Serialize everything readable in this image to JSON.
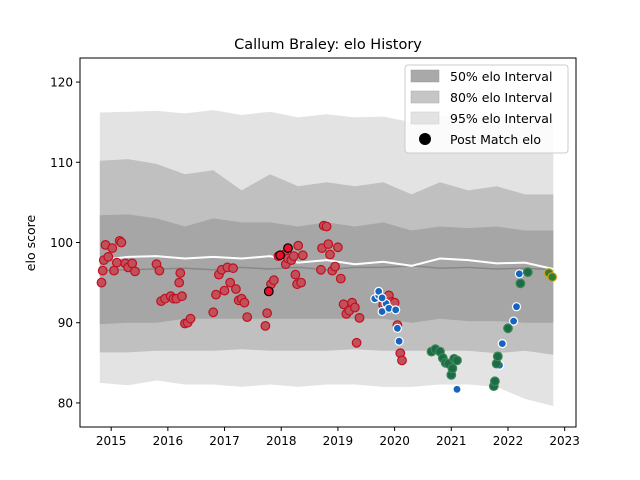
{
  "chart_data": {
    "type": "scatter",
    "title": "Callum Braley: elo History",
    "xlabel": "",
    "ylabel": "elo score",
    "xlim": [
      2014.45,
      2023.2
    ],
    "ylim": [
      77,
      123
    ],
    "x_ticks": [
      "2015",
      "2016",
      "2017",
      "2018",
      "2019",
      "2020",
      "2021",
      "2022",
      "2023"
    ],
    "y_ticks": [
      "80",
      "90",
      "100",
      "110",
      "120"
    ],
    "grid": false,
    "legend_position": "top-right",
    "legend": [
      "50% elo Interval",
      "80% elo Interval",
      "95% elo Interval",
      "Post Match elo"
    ],
    "colors": {
      "band50": "#9e9e9e",
      "band80": "#c0c0c0",
      "band95": "#e3e3e3",
      "median_line": "#888888",
      "mean_line": "#ffffff",
      "point_red_fill": "#c0505a",
      "point_red_edge": "#c01020",
      "point_green_fill": "#1e6b4b",
      "point_green_edge": "#3a8a50",
      "point_blue_fill": "#1565c0",
      "point_blue_edge": "#ffffff",
      "point_gold_fill": "#2e7d32",
      "point_gold_edge": "#d4a017"
    },
    "bands": {
      "x": [
        2014.8,
        2015.3,
        2015.8,
        2016.3,
        2016.8,
        2017.3,
        2017.8,
        2018.3,
        2018.8,
        2019.3,
        2019.8,
        2020.3,
        2020.8,
        2021.3,
        2021.8,
        2022.3,
        2022.8
      ],
      "p95_high": [
        116.2,
        116.3,
        116.4,
        116.1,
        116.5,
        115.9,
        116.3,
        115.6,
        116.0,
        115.6,
        115.7,
        115.0,
        115.8,
        115.6,
        115.8,
        115.4,
        115.3
      ],
      "p80_high": [
        110.2,
        110.4,
        109.8,
        108.5,
        109.0,
        106.5,
        108.5,
        107.0,
        107.5,
        107.0,
        107.5,
        106.0,
        107.5,
        106.5,
        107.0,
        106.0,
        106.0
      ],
      "p50_high": [
        103.4,
        103.5,
        103.0,
        102.0,
        103.0,
        102.5,
        102.5,
        102.0,
        102.5,
        102.0,
        102.5,
        101.5,
        102.0,
        101.8,
        102.0,
        101.5,
        101.5
      ],
      "p50_low": [
        89.8,
        90.0,
        90.0,
        90.5,
        90.5,
        90.5,
        90.5,
        90.5,
        90.5,
        90.5,
        90.5,
        90.0,
        90.5,
        90.2,
        90.2,
        90.0,
        90.0
      ],
      "p80_low": [
        86.3,
        86.3,
        86.5,
        86.5,
        86.5,
        86.7,
        86.5,
        86.5,
        86.5,
        86.7,
        86.5,
        86.5,
        86.5,
        86.5,
        86.2,
        86.5,
        86.0
      ],
      "p95_low": [
        82.5,
        82.2,
        82.8,
        82.3,
        82.3,
        82.0,
        82.3,
        82.0,
        82.3,
        82.3,
        82.0,
        82.0,
        82.3,
        82.3,
        82.0,
        80.5,
        79.6
      ]
    },
    "median_line": {
      "x": [
        2014.8,
        2015.3,
        2015.8,
        2016.3,
        2016.8,
        2017.3,
        2017.8,
        2018.3,
        2018.8,
        2019.3,
        2019.8,
        2020.3,
        2020.8,
        2021.3,
        2021.8,
        2022.3,
        2022.8
      ],
      "y": [
        96.5,
        96.6,
        96.7,
        96.8,
        96.6,
        96.9,
        96.7,
        96.9,
        96.6,
        96.9,
        96.9,
        97.1,
        96.8,
        96.9,
        96.7,
        96.8,
        96.6
      ]
    },
    "mean_line": {
      "x": [
        2014.8,
        2015.3,
        2015.8,
        2016.3,
        2016.8,
        2017.3,
        2017.8,
        2018.3,
        2018.8,
        2019.3,
        2019.8,
        2020.3,
        2020.8,
        2021.3,
        2021.8,
        2022.3,
        2022.8
      ],
      "y": [
        97.8,
        98.2,
        98.3,
        98.0,
        98.2,
        98.0,
        98.3,
        97.5,
        97.8,
        97.3,
        97.6,
        97.1,
        98.0,
        97.8,
        97.4,
        97.5,
        96.7
      ]
    },
    "series": [
      {
        "group": "red",
        "points": [
          [
            2014.83,
            95.0
          ],
          [
            2014.85,
            96.5
          ],
          [
            2014.87,
            97.8
          ],
          [
            2014.9,
            99.7
          ],
          [
            2014.95,
            98.2
          ],
          [
            2015.02,
            99.3
          ],
          [
            2015.05,
            96.5
          ],
          [
            2015.1,
            97.5
          ],
          [
            2015.15,
            100.2
          ],
          [
            2015.18,
            100.0
          ],
          [
            2015.25,
            97.4
          ],
          [
            2015.3,
            96.9
          ],
          [
            2015.37,
            97.4
          ],
          [
            2015.42,
            96.4
          ],
          [
            2015.8,
            97.3
          ],
          [
            2015.85,
            96.5
          ],
          [
            2015.88,
            92.7
          ],
          [
            2015.95,
            93.0
          ],
          [
            2016.05,
            93.3
          ],
          [
            2016.1,
            93.0
          ],
          [
            2016.15,
            93.0
          ],
          [
            2016.2,
            95.0
          ],
          [
            2016.22,
            96.2
          ],
          [
            2016.25,
            93.3
          ],
          [
            2016.3,
            89.9
          ],
          [
            2016.35,
            90.0
          ],
          [
            2016.4,
            90.5
          ],
          [
            2016.8,
            91.3
          ],
          [
            2016.85,
            93.5
          ],
          [
            2016.9,
            96.0
          ],
          [
            2016.95,
            96.6
          ],
          [
            2017.0,
            94.0
          ],
          [
            2017.05,
            96.9
          ],
          [
            2017.1,
            95.0
          ],
          [
            2017.15,
            96.8
          ],
          [
            2017.2,
            94.2
          ],
          [
            2017.25,
            92.8
          ],
          [
            2017.3,
            93.0
          ],
          [
            2017.35,
            92.5
          ],
          [
            2017.4,
            90.7
          ],
          [
            2017.72,
            89.6
          ],
          [
            2017.75,
            91.2
          ],
          [
            2017.82,
            94.8
          ],
          [
            2017.87,
            95.3
          ],
          [
            2017.95,
            98.3
          ],
          [
            2018.05,
            98.5
          ],
          [
            2018.08,
            97.3
          ],
          [
            2018.12,
            98.0
          ],
          [
            2018.18,
            97.8
          ],
          [
            2018.22,
            98.3
          ],
          [
            2018.25,
            96.0
          ],
          [
            2018.28,
            94.8
          ],
          [
            2018.3,
            99.6
          ],
          [
            2018.35,
            95.0
          ],
          [
            2018.38,
            98.4
          ],
          [
            2018.7,
            96.6
          ],
          [
            2018.72,
            99.3
          ],
          [
            2018.75,
            102.1
          ],
          [
            2018.8,
            102.0
          ],
          [
            2018.83,
            99.8
          ],
          [
            2018.86,
            98.5
          ],
          [
            2018.9,
            96.5
          ],
          [
            2018.95,
            97.0
          ],
          [
            2019.0,
            99.4
          ],
          [
            2019.05,
            95.5
          ],
          [
            2019.1,
            92.3
          ],
          [
            2019.15,
            91.1
          ],
          [
            2019.2,
            91.5
          ],
          [
            2019.25,
            92.5
          ],
          [
            2019.3,
            91.9
          ],
          [
            2019.33,
            87.5
          ],
          [
            2019.38,
            90.6
          ],
          [
            2019.8,
            92.2
          ],
          [
            2019.85,
            92.0
          ],
          [
            2019.9,
            93.4
          ],
          [
            2019.95,
            92.6
          ],
          [
            2020.0,
            92.5
          ],
          [
            2020.05,
            89.7
          ],
          [
            2020.1,
            86.2
          ],
          [
            2020.13,
            85.3
          ]
        ]
      },
      {
        "group": "red-highlight",
        "points": [
          [
            2017.78,
            93.9
          ],
          [
            2017.98,
            98.4
          ],
          [
            2018.12,
            99.3
          ]
        ]
      },
      {
        "group": "blue",
        "points": [
          [
            2019.65,
            93.0
          ],
          [
            2019.72,
            93.4
          ],
          [
            2019.78,
            91.4
          ],
          [
            2019.85,
            92.4
          ],
          [
            2019.9,
            91.8
          ],
          [
            2020.02,
            91.6
          ],
          [
            2020.05,
            89.3
          ],
          [
            2020.08,
            87.7
          ],
          [
            2020.8,
            86.4
          ],
          [
            2021.1,
            81.7
          ],
          [
            2021.85,
            84.7
          ],
          [
            2021.9,
            87.4
          ],
          [
            2022.1,
            90.2
          ],
          [
            2022.15,
            92.0
          ],
          [
            2022.2,
            96.1
          ],
          [
            2019.72,
            93.9
          ],
          [
            2019.78,
            93.1
          ]
        ]
      },
      {
        "group": "green",
        "points": [
          [
            2020.65,
            86.4
          ],
          [
            2020.72,
            86.7
          ],
          [
            2020.8,
            86.4
          ],
          [
            2020.85,
            85.6
          ],
          [
            2020.9,
            85.0
          ],
          [
            2020.95,
            84.9
          ],
          [
            2021.0,
            83.5
          ],
          [
            2021.02,
            84.3
          ],
          [
            2021.05,
            85.5
          ],
          [
            2021.1,
            85.3
          ],
          [
            2021.75,
            82.1
          ],
          [
            2021.77,
            82.7
          ],
          [
            2021.8,
            84.9
          ],
          [
            2021.82,
            85.8
          ],
          [
            2022.0,
            89.3
          ],
          [
            2022.22,
            94.9
          ],
          [
            2022.35,
            96.3
          ]
        ]
      },
      {
        "group": "gold",
        "points": [
          [
            2022.72,
            96.2
          ],
          [
            2022.78,
            95.7
          ]
        ]
      }
    ]
  }
}
